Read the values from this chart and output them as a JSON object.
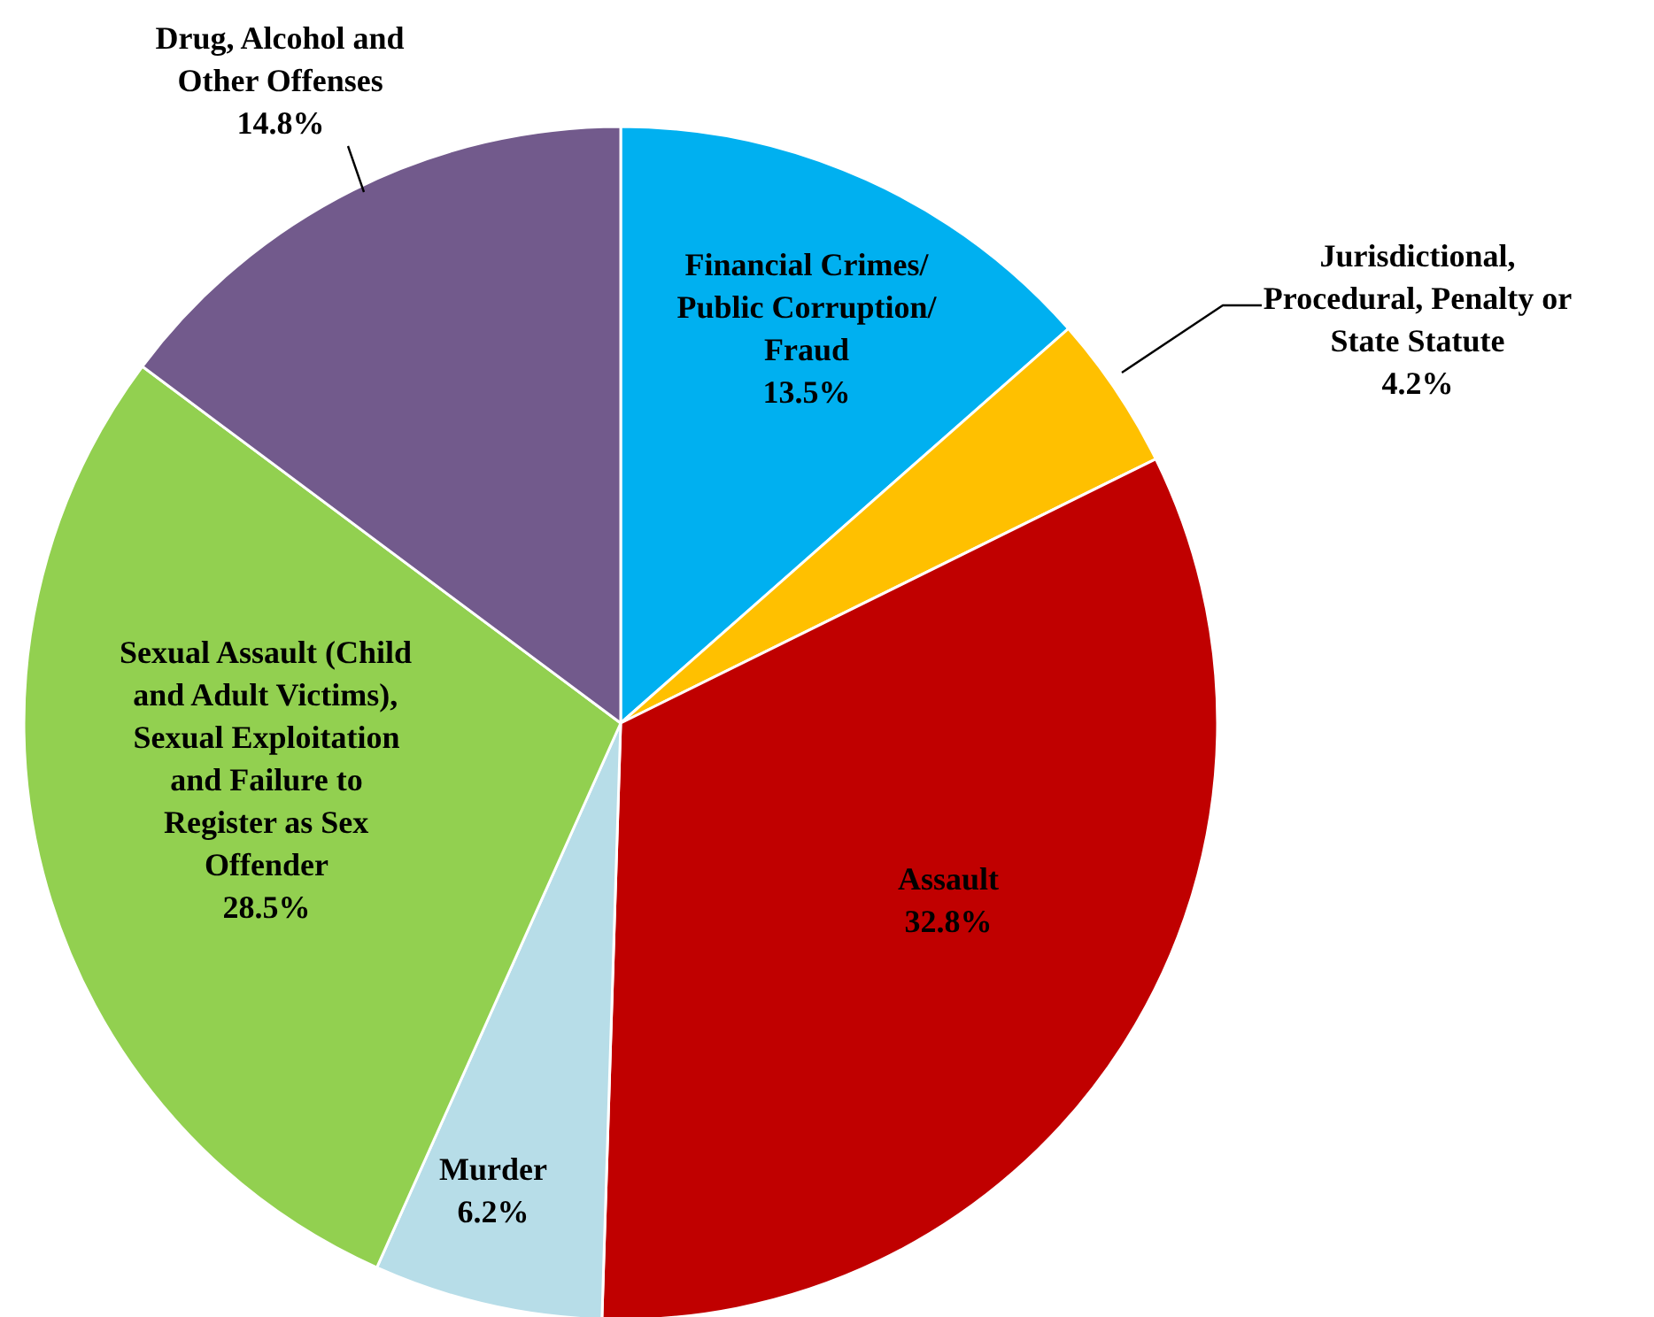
{
  "chart_data": {
    "type": "pie",
    "categories": [
      "Financial Crimes/ Public Corruption/ Fraud",
      "Jurisdictional, Procedural, Penalty or State Statute",
      "Assault",
      "Murder",
      "Sexual Assault (Child and Adult Victims), Sexual Exploitation and Failure to Register as Sex Offender",
      "Drug, Alcohol and Other Offenses"
    ],
    "values": [
      13.5,
      4.2,
      32.8,
      6.2,
      28.5,
      14.8
    ],
    "value_labels": [
      "13.5%",
      "4.2%",
      "32.8%",
      "6.2%",
      "28.5%",
      "14.8%"
    ],
    "colors": [
      "#00b0f0",
      "#ffc000",
      "#c00000",
      "#b7dde8",
      "#92d050",
      "#725a8c"
    ]
  }
}
